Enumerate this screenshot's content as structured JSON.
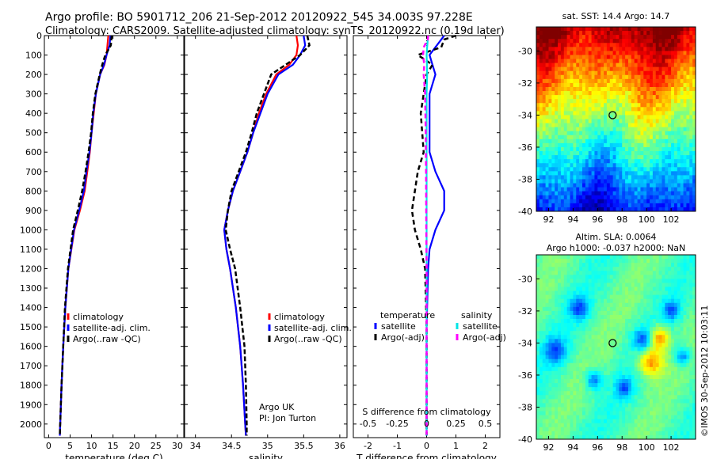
{
  "header": {
    "line1": "Argo profile: BO 5901712_206 21-Sep-2012 20120922_545 34.003S 97.228E",
    "line2": "Climatology: CARS2009. Satellite-adjusted climatology: synTS_20120922.nc (0.19d later)"
  },
  "colors": {
    "climatology": "#ff0000",
    "satellite": "#0000ff",
    "argo": "#000000",
    "sat_salinity": "#00e5e5",
    "argo_salinity": "#ff00ff"
  },
  "chart_data": [
    {
      "type": "line",
      "xlabel": "temperature (deg C)",
      "ylabel": "",
      "xlim": [
        -1,
        31.5
      ],
      "ylim": [
        2070,
        0
      ],
      "x_ticks": [
        "0",
        "5",
        "10",
        "15",
        "20",
        "25",
        "30"
      ],
      "x_tick_values": [
        0,
        5,
        10,
        15,
        20,
        25,
        30
      ],
      "y_ticks": [
        "0",
        "100",
        "200",
        "300",
        "400",
        "500",
        "600",
        "700",
        "800",
        "900",
        "1000",
        "1100",
        "1200",
        "1300",
        "1400",
        "1500",
        "1600",
        "1700",
        "1800",
        "1900",
        "2000"
      ],
      "y_tick_values": [
        0,
        100,
        200,
        300,
        400,
        500,
        600,
        700,
        800,
        900,
        1000,
        1100,
        1200,
        1300,
        1400,
        1500,
        1600,
        1700,
        1800,
        1900,
        2000
      ],
      "legend": [
        "climatology",
        "satellite-adj. clim.",
        "Argo(..raw -QC)"
      ],
      "series": [
        {
          "name": "climatology",
          "color": "#ff0000",
          "depth": [
            0,
            50,
            100,
            150,
            200,
            300,
            400,
            500,
            600,
            700,
            800,
            900,
            1000,
            1200,
            1400,
            1600,
            1800,
            2000,
            2060
          ],
          "values": [
            13.9,
            13.7,
            13.5,
            13.0,
            12.0,
            11.0,
            10.5,
            10.0,
            9.6,
            9.0,
            8.4,
            7.3,
            6.0,
            4.6,
            3.9,
            3.4,
            3.0,
            2.7,
            2.6
          ]
        },
        {
          "name": "satellite-adj. clim.",
          "color": "#0000ff",
          "depth": [
            0,
            50,
            100,
            150,
            200,
            300,
            400,
            500,
            600,
            700,
            800,
            900,
            1000,
            1200,
            1400,
            1600,
            1800,
            2000,
            2060
          ],
          "values": [
            14.4,
            14.2,
            13.5,
            12.9,
            12.0,
            11.0,
            10.4,
            10.0,
            9.5,
            8.8,
            8.2,
            7.1,
            5.9,
            4.6,
            3.9,
            3.4,
            3.0,
            2.7,
            2.6
          ]
        },
        {
          "name": "Argo(..raw -QC)",
          "color": "#000000",
          "depth": [
            0,
            50,
            100,
            150,
            200,
            300,
            400,
            500,
            600,
            700,
            800,
            900,
            1000,
            1200,
            1400,
            1600,
            1800,
            2000,
            2060
          ],
          "values": [
            14.7,
            14.5,
            13.2,
            12.5,
            11.9,
            10.9,
            10.3,
            9.9,
            9.3,
            8.6,
            7.8,
            6.8,
            5.7,
            4.5,
            3.8,
            3.4,
            3.0,
            2.7,
            2.6
          ]
        }
      ]
    },
    {
      "type": "line",
      "xlabel": "salinity",
      "ylabel": "",
      "xlim": [
        33.85,
        36.1
      ],
      "ylim": [
        2070,
        0
      ],
      "x_ticks": [
        "34",
        "34.5",
        "35",
        "35.5",
        "36"
      ],
      "x_tick_values": [
        34,
        34.5,
        35,
        35.5,
        36
      ],
      "legend": [
        "climatology",
        "satellite-adj. clim.",
        "Argo(..raw -QC)"
      ],
      "annotation": [
        "Argo UK",
        "PI: Jon Turton"
      ],
      "series": [
        {
          "name": "climatology",
          "color": "#ff0000",
          "depth": [
            0,
            50,
            100,
            150,
            200,
            300,
            400,
            500,
            600,
            700,
            800,
            900,
            1000,
            1100,
            1200,
            1400,
            1600,
            1800,
            2000,
            2060
          ],
          "values": [
            35.4,
            35.42,
            35.4,
            35.3,
            35.12,
            34.98,
            34.88,
            34.8,
            34.72,
            34.62,
            34.52,
            34.45,
            34.4,
            34.43,
            34.48,
            34.56,
            34.62,
            34.66,
            34.69,
            34.7
          ]
        },
        {
          "name": "satellite-adj. clim.",
          "color": "#0000ff",
          "depth": [
            0,
            50,
            100,
            150,
            200,
            300,
            400,
            500,
            600,
            700,
            800,
            900,
            1000,
            1100,
            1200,
            1400,
            1600,
            1800,
            2000,
            2060
          ],
          "values": [
            35.5,
            35.52,
            35.45,
            35.35,
            35.15,
            35.0,
            34.9,
            34.8,
            34.72,
            34.62,
            34.52,
            34.45,
            34.4,
            34.43,
            34.48,
            34.56,
            34.62,
            34.66,
            34.69,
            34.7
          ]
        },
        {
          "name": "Argo(..raw -QC)",
          "color": "#000000",
          "depth": [
            0,
            50,
            100,
            150,
            200,
            300,
            400,
            500,
            600,
            700,
            800,
            900,
            1000,
            1100,
            1200,
            1400,
            1600,
            1800,
            2000,
            2060
          ],
          "values": [
            35.55,
            35.58,
            35.45,
            35.25,
            35.05,
            34.95,
            34.85,
            34.78,
            34.7,
            34.6,
            34.5,
            34.45,
            34.42,
            34.48,
            34.55,
            34.62,
            34.68,
            34.7,
            34.71,
            34.71
          ]
        }
      ]
    },
    {
      "type": "line",
      "xlabel": "T difference from climatology",
      "xlabel_top": "S difference from climatology",
      "ylabel": "",
      "xlim": [
        -2.5,
        2.5
      ],
      "ylim": [
        2070,
        0
      ],
      "x_ticks": [
        "-2",
        "-1",
        "0",
        "1",
        "2"
      ],
      "x_tick_values": [
        -2,
        -1,
        0,
        1,
        2
      ],
      "s_ticks": [
        "-0.5",
        "-0.25",
        "0",
        "0.25",
        "0.5"
      ],
      "s_tick_values": [
        -0.5,
        -0.25,
        0,
        0.25,
        0.5
      ],
      "legend": {
        "temperature_title": "temperature",
        "salinity_title": "salinity",
        "temperature_items": [
          "satellite",
          "Argo(-adj)"
        ],
        "salinity_items": [
          "satellite",
          "Argo(-adj)"
        ]
      },
      "series": [
        {
          "name": "satellite",
          "color": "#0000ff",
          "depth": [
            0,
            20,
            60,
            100,
            150,
            200,
            300,
            400,
            600,
            700,
            800,
            900,
            1000,
            1100,
            1200,
            1500,
            2000,
            2060
          ],
          "values": [
            0.6,
            0.5,
            0.3,
            0.1,
            0.2,
            0.3,
            0.1,
            0.1,
            0.1,
            0.3,
            0.6,
            0.6,
            0.3,
            0.1,
            0.05,
            0.0,
            0.0,
            0.0
          ]
        },
        {
          "name": "Argo(-adj)",
          "color": "#000000",
          "depth": [
            0,
            20,
            60,
            100,
            150,
            200,
            300,
            400,
            600,
            700,
            800,
            900,
            1000,
            1100,
            1200,
            1500,
            2000,
            2060
          ],
          "values": [
            1.0,
            0.6,
            0.5,
            -0.3,
            0.2,
            0.0,
            -0.1,
            -0.2,
            -0.1,
            -0.3,
            -0.4,
            -0.5,
            -0.4,
            -0.2,
            -0.05,
            0.0,
            0.0,
            0.0
          ]
        },
        {
          "name": "satellite",
          "color": "#00e5e5",
          "depth": [
            0,
            20,
            60,
            100,
            150,
            200,
            300,
            500,
            800,
            1000,
            1200,
            1500,
            2000,
            2060
          ],
          "values": [
            0.05,
            0.04,
            0.02,
            0.0,
            0.01,
            0.02,
            0.0,
            0.0,
            0.0,
            0.0,
            0.0,
            0.0,
            0.0,
            0.0
          ]
        },
        {
          "name": "Argo(-adj)",
          "color": "#ff00ff",
          "depth": [
            0,
            20,
            60,
            100,
            150,
            200,
            300,
            400,
            500,
            700,
            1000,
            1200,
            1500,
            2000,
            2060
          ],
          "values": [
            0.05,
            0.04,
            -0.1,
            -0.12,
            -0.08,
            -0.1,
            -0.05,
            -0.04,
            -0.03,
            -0.02,
            -0.01,
            0.0,
            0.0,
            0.0,
            0.0
          ]
        }
      ]
    },
    {
      "type": "heatmap",
      "title": "sat. SST: 14.4 Argo: 14.7",
      "xlim": [
        91,
        104
      ],
      "ylim": [
        -40,
        -28.5
      ],
      "x_ticks": [
        "92",
        "94",
        "96",
        "98",
        "100",
        "102"
      ],
      "x_tick_values": [
        92,
        94,
        96,
        98,
        100,
        102
      ],
      "y_ticks": [
        "-30",
        "-32",
        "-34",
        "-36",
        "-38",
        "-40"
      ],
      "y_tick_values": [
        -30,
        -32,
        -34,
        -36,
        -38,
        -40
      ],
      "marker": {
        "lon": 97.228,
        "lat": -34.003
      }
    },
    {
      "type": "heatmap",
      "title": "Altim. SLA: 0.0064",
      "subtitle": "Argo h1000: -0.037 h2000: NaN",
      "xlim": [
        91,
        104
      ],
      "ylim": [
        -40,
        -28.5
      ],
      "x_ticks": [
        "92",
        "94",
        "96",
        "98",
        "100",
        "102"
      ],
      "x_tick_values": [
        92,
        94,
        96,
        98,
        100,
        102
      ],
      "y_ticks": [
        "-30",
        "-32",
        "-34",
        "-36",
        "-38",
        "-40"
      ],
      "y_tick_values": [
        -30,
        -32,
        -34,
        -36,
        -38,
        -40
      ],
      "marker": {
        "lon": 97.228,
        "lat": -34.003
      }
    }
  ],
  "watermark": "©IMOS 30-Sep-2012 10:03:11"
}
